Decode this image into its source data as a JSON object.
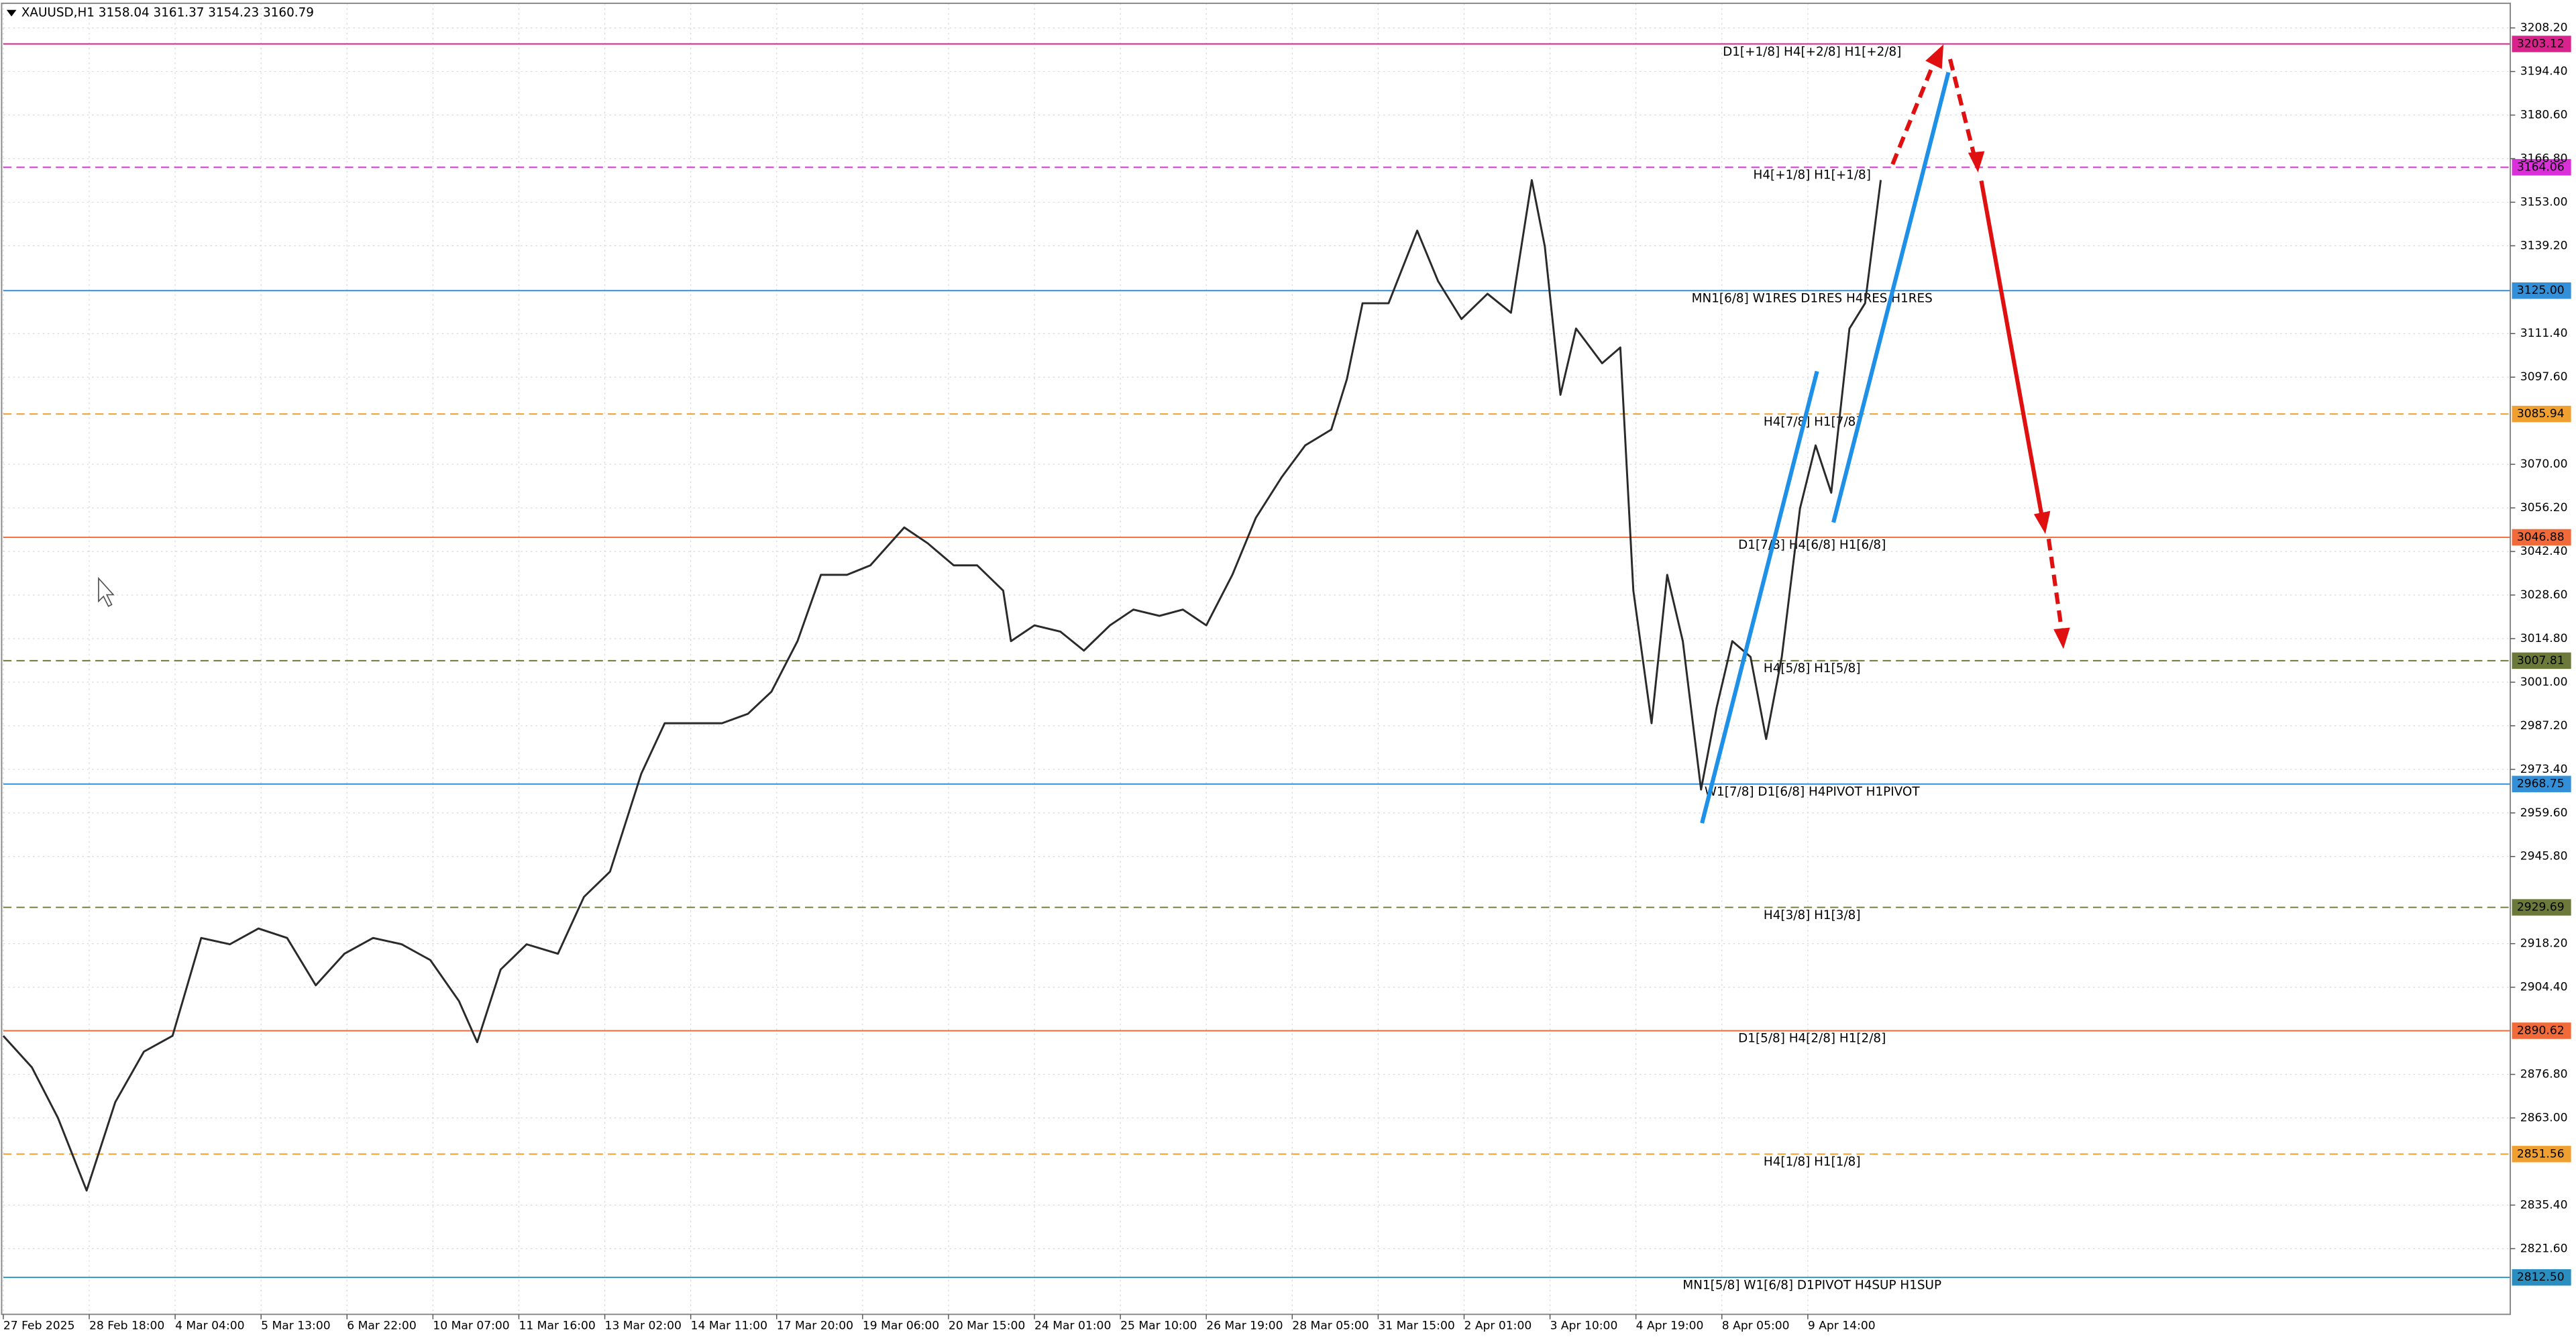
{
  "chart_data": {
    "type": "line",
    "title": "XAUUSD,H1  3158.04 3161.37 3154.23 3160.79",
    "color": "#2a2a2a",
    "grid": true,
    "x": [
      0,
      11,
      21,
      32,
      43,
      54,
      65,
      76,
      87,
      98,
      109,
      120,
      131,
      142,
      153,
      164,
      175,
      182,
      191,
      201,
      213,
      223,
      233,
      245,
      254,
      264,
      276,
      286,
      295,
      305,
      314,
      324,
      333,
      346,
      355,
      365,
      374,
      384,
      387,
      396,
      406,
      415,
      425,
      434,
      444,
      453,
      462,
      472,
      481,
      491,
      500,
      510,
      516,
      522,
      532,
      543,
      551,
      560,
      570,
      579,
      587,
      592,
      598,
      604,
      614,
      621,
      626,
      633,
      639,
      645,
      652,
      658,
      664,
      671,
      677,
      683,
      690,
      696,
      702,
      709,
      715,
      721
    ],
    "values": [
      2889,
      2879,
      2863,
      2840,
      2868,
      2884,
      2889,
      2920,
      2918,
      2923,
      2920,
      2905,
      2915,
      2920,
      2918,
      2913,
      2900,
      2887,
      2910,
      2918,
      2915,
      2933,
      2941,
      2972,
      2988,
      2988,
      2988,
      2991,
      2998,
      3014,
      3035,
      3035,
      3038,
      3050,
      3045,
      3038,
      3038,
      3030,
      3014,
      3019,
      3017,
      3011,
      3019,
      3024,
      3022,
      3024,
      3019,
      3035,
      3053,
      3066,
      3076,
      3081,
      3097,
      3121,
      3121,
      3144,
      3128,
      3116,
      3124,
      3118,
      3160,
      3139,
      3092,
      3113,
      3102,
      3107,
      3030,
      2988,
      3035,
      3014,
      2967,
      2993,
      3014,
      3009,
      2983,
      3009,
      3056,
      3076,
      3061,
      3113,
      3121,
      3160
    ],
    "xlim": [
      0,
      963
    ],
    "ylim": [
      2800.8,
      3216.0
    ],
    "xticks": [
      {
        "value": 0,
        "label": "27 Feb 2025"
      },
      {
        "value": 33,
        "label": "28 Feb 18:00"
      },
      {
        "value": 66,
        "label": "4 Mar 04:00"
      },
      {
        "value": 99,
        "label": "5 Mar 13:00"
      },
      {
        "value": 132,
        "label": "6 Mar 22:00"
      },
      {
        "value": 165,
        "label": "10 Mar 07:00"
      },
      {
        "value": 198,
        "label": "11 Mar 16:00"
      },
      {
        "value": 231,
        "label": "13 Mar 02:00"
      },
      {
        "value": 264,
        "label": "14 Mar 11:00"
      },
      {
        "value": 297,
        "label": "17 Mar 20:00"
      },
      {
        "value": 330,
        "label": "19 Mar 06:00"
      },
      {
        "value": 363,
        "label": "20 Mar 15:00"
      },
      {
        "value": 396,
        "label": "24 Mar 01:00"
      },
      {
        "value": 429,
        "label": "25 Mar 10:00"
      },
      {
        "value": 462,
        "label": "26 Mar 19:00"
      },
      {
        "value": 495,
        "label": "28 Mar 05:00"
      },
      {
        "value": 528,
        "label": "31 Mar 15:00"
      },
      {
        "value": 561,
        "label": "2 Apr 01:00"
      },
      {
        "value": 594,
        "label": "3 Apr 10:00"
      },
      {
        "value": 627,
        "label": "4 Apr 19:00"
      },
      {
        "value": 660,
        "label": "8 Apr 05:00"
      },
      {
        "value": 693,
        "label": "9 Apr 14:00"
      }
    ],
    "yticks": [
      {
        "value": 3208.2,
        "label": "3208.20"
      },
      {
        "value": 3194.4,
        "label": "3194.40"
      },
      {
        "value": 3180.6,
        "label": "3180.60"
      },
      {
        "value": 3166.8,
        "label": "3166.80"
      },
      {
        "value": 3153.0,
        "label": "3153.00"
      },
      {
        "value": 3139.2,
        "label": "3139.20"
      },
      {
        "value": 3111.4,
        "label": "3111.40"
      },
      {
        "value": 3097.6,
        "label": "3097.60"
      },
      {
        "value": 3070.0,
        "label": "3070.00"
      },
      {
        "value": 3056.2,
        "label": "3056.20"
      },
      {
        "value": 3042.4,
        "label": "3042.40"
      },
      {
        "value": 3028.6,
        "label": "3028.60"
      },
      {
        "value": 3014.8,
        "label": "3014.80"
      },
      {
        "value": 3001.0,
        "label": "3001.00"
      },
      {
        "value": 2987.2,
        "label": "2987.20"
      },
      {
        "value": 2973.4,
        "label": "2973.40"
      },
      {
        "value": 2959.6,
        "label": "2959.60"
      },
      {
        "value": 2945.8,
        "label": "2945.80"
      },
      {
        "value": 2918.2,
        "label": "2918.20"
      },
      {
        "value": 2904.4,
        "label": "2904.40"
      },
      {
        "value": 2876.8,
        "label": "2876.80"
      },
      {
        "value": 2863.0,
        "label": "2863.00"
      },
      {
        "value": 2835.4,
        "label": "2835.40"
      },
      {
        "value": 2821.6,
        "label": "2821.60"
      }
    ],
    "levels": [
      {
        "label": "D1[+1/8] H4[+2/8] H1[+2/8]",
        "value": 3203.12,
        "value_label": "3203.12",
        "color": "#d9238c",
        "dashed": false
      },
      {
        "label": "H4[+1/8] H1[+1/8]",
        "value": 3164.06,
        "value_label": "3164.06",
        "color": "#d930d9",
        "dashed": true
      },
      {
        "label": "MN1[6/8] W1RES D1RES H4RES H1RES",
        "value": 3125.0,
        "value_label": "3125.00",
        "color": "#3390d8",
        "dashed": false
      },
      {
        "label": "H4[7/8] H1[7/8]",
        "value": 3085.94,
        "value_label": "3085.94",
        "color": "#f0a030",
        "dashed": true
      },
      {
        "label": "D1[7/8] H4[6/8] H1[6/8]",
        "value": 3046.88,
        "value_label": "3046.88",
        "color": "#f06a3a",
        "dashed": false
      },
      {
        "label": "H4[5/8] H1[5/8]",
        "value": 3007.81,
        "value_label": "3007.81",
        "color": "#6b7a3a",
        "dashed": true
      },
      {
        "label": "W1[7/8] D1[6/8] H4PIVOT H1PIVOT",
        "value": 2968.75,
        "value_label": "2968.75",
        "color": "#3390d8",
        "dashed": false
      },
      {
        "label": "H4[3/8] H1[3/8]",
        "value": 2929.69,
        "value_label": "2929.69",
        "color": "#6b7a3a",
        "dashed": true
      },
      {
        "label": "D1[5/8] H4[2/8] H1[2/8]",
        "value": 2890.62,
        "value_label": "2890.62",
        "color": "#f06a3a",
        "dashed": false
      },
      {
        "label": "H4[1/8] H1[1/8]",
        "value": 2851.56,
        "value_label": "2851.56",
        "color": "#f0a030",
        "dashed": true
      },
      {
        "label": "MN1[5/8] W1[6/8] D1PIVOT H4SUP H1SUP",
        "value": 2812.5,
        "value_label": "2812.50",
        "color": "#2a8fc0",
        "dashed": false
      }
    ]
  }
}
